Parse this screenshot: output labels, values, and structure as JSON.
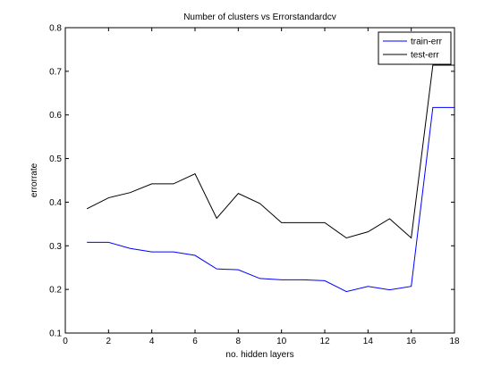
{
  "chart_data": {
    "type": "line",
    "title": "Number of clusters vs Errorstandardcv",
    "xlabel": "no. hidden layers",
    "ylabel": "errorrate",
    "xlim": [
      0,
      18
    ],
    "ylim": [
      0.1,
      0.8
    ],
    "xticks": [
      0,
      2,
      4,
      6,
      8,
      10,
      12,
      14,
      16,
      18
    ],
    "yticks": [
      0.1,
      0.2,
      0.3,
      0.4,
      0.5,
      0.6,
      0.7,
      0.8
    ],
    "grid": false,
    "legend_position": "top-right",
    "x": [
      1,
      2,
      3,
      4,
      5,
      6,
      7,
      8,
      9,
      10,
      11,
      12,
      13,
      14,
      15,
      16,
      17,
      18
    ],
    "series": [
      {
        "name": "train-err",
        "color": "#0000ff",
        "values": [
          0.308,
          0.308,
          0.294,
          0.286,
          0.286,
          0.278,
          0.247,
          0.245,
          0.225,
          0.222,
          0.222,
          0.22,
          0.195,
          0.207,
          0.199,
          0.207,
          0.617,
          0.617
        ]
      },
      {
        "name": "test-err",
        "color": "#000000",
        "values": [
          0.385,
          0.41,
          0.422,
          0.442,
          0.442,
          0.465,
          0.363,
          0.42,
          0.397,
          0.353,
          0.353,
          0.353,
          0.318,
          0.332,
          0.362,
          0.318,
          0.714,
          0.714
        ]
      }
    ]
  }
}
